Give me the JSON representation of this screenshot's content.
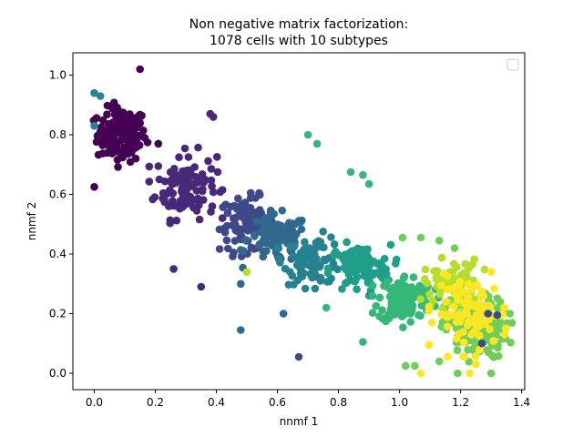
{
  "chart_data": {
    "type": "scatter",
    "title": "Non negative matrix factorization:",
    "subtitle": "1078 cells with 10 subtypes",
    "xlabel": "nnmf 1",
    "ylabel": "nnmf 2",
    "xlim": [
      -0.07,
      1.41
    ],
    "ylim": [
      -0.055,
      1.075
    ],
    "xticks": [
      0.0,
      0.2,
      0.4,
      0.6,
      0.8,
      1.0,
      1.2,
      1.4
    ],
    "xtick_labels": [
      "0.0",
      "0.2",
      "0.4",
      "0.6",
      "0.8",
      "1.0",
      "1.2",
      "1.4"
    ],
    "yticks": [
      0.0,
      0.2,
      0.4,
      0.6,
      0.8,
      1.0
    ],
    "ytick_labels": [
      "0.0",
      "0.2",
      "0.4",
      "0.6",
      "0.8",
      "1.0"
    ],
    "grid": false,
    "legend": {
      "position": "top-right",
      "entries": []
    },
    "colormap": [
      "#440154",
      "#482878",
      "#3e4989",
      "#31688e",
      "#26828e",
      "#1f9e89",
      "#35b779",
      "#6ece58",
      "#b5de2b",
      "#fde725"
    ],
    "clusters": [
      {
        "cluster": 0,
        "center": [
          0.09,
          0.8
        ],
        "spread": [
          0.04,
          0.045
        ],
        "n": 140
      },
      {
        "cluster": 1,
        "center": [
          0.3,
          0.63
        ],
        "spread": [
          0.05,
          0.055
        ],
        "n": 115
      },
      {
        "cluster": 2,
        "center": [
          0.5,
          0.5
        ],
        "spread": [
          0.045,
          0.045
        ],
        "n": 95
      },
      {
        "cluster": 3,
        "center": [
          0.6,
          0.45
        ],
        "spread": [
          0.05,
          0.04
        ],
        "n": 95
      },
      {
        "cluster": 4,
        "center": [
          0.72,
          0.38
        ],
        "spread": [
          0.05,
          0.04
        ],
        "n": 90
      },
      {
        "cluster": 5,
        "center": [
          0.87,
          0.35
        ],
        "spread": [
          0.05,
          0.04
        ],
        "n": 95
      },
      {
        "cluster": 6,
        "center": [
          1.02,
          0.25
        ],
        "spread": [
          0.045,
          0.04
        ],
        "n": 120
      },
      {
        "cluster": 7,
        "center": [
          1.25,
          0.15
        ],
        "spread": [
          0.05,
          0.05
        ],
        "n": 160
      },
      {
        "cluster": 8,
        "center": [
          1.17,
          0.3
        ],
        "spread": [
          0.045,
          0.04
        ],
        "n": 70
      },
      {
        "cluster": 9,
        "center": [
          1.24,
          0.2
        ],
        "spread": [
          0.06,
          0.06
        ],
        "n": 98
      }
    ],
    "outliers": [
      {
        "x": 0.15,
        "y": 1.02,
        "cluster": 0
      },
      {
        "x": 0.0,
        "y": 0.625,
        "cluster": 0
      },
      {
        "x": 0.26,
        "y": 0.35,
        "cluster": 1
      },
      {
        "x": 0.35,
        "y": 0.29,
        "cluster": 1
      },
      {
        "x": 0.38,
        "y": 0.87,
        "cluster": 1
      },
      {
        "x": 0.39,
        "y": 0.86,
        "cluster": 1
      },
      {
        "x": 0.0,
        "y": 0.94,
        "cluster": 4
      },
      {
        "x": 0.02,
        "y": 0.93,
        "cluster": 4
      },
      {
        "x": 0.0,
        "y": 0.83,
        "cluster": 4
      },
      {
        "x": 0.48,
        "y": 0.3,
        "cluster": 3
      },
      {
        "x": 0.48,
        "y": 0.145,
        "cluster": 3
      },
      {
        "x": 0.62,
        "y": 0.2,
        "cluster": 3
      },
      {
        "x": 0.67,
        "y": 0.055,
        "cluster": 2
      },
      {
        "x": 0.7,
        "y": 0.8,
        "cluster": 6
      },
      {
        "x": 0.73,
        "y": 0.77,
        "cluster": 6
      },
      {
        "x": 0.76,
        "y": 0.22,
        "cluster": 6
      },
      {
        "x": 0.84,
        "y": 0.675,
        "cluster": 6
      },
      {
        "x": 0.88,
        "y": 0.665,
        "cluster": 6
      },
      {
        "x": 0.9,
        "y": 0.635,
        "cluster": 6
      },
      {
        "x": 0.88,
        "y": 0.105,
        "cluster": 6
      },
      {
        "x": 1.01,
        "y": 0.455,
        "cluster": 7
      },
      {
        "x": 1.07,
        "y": 0.455,
        "cluster": 7
      },
      {
        "x": 1.13,
        "y": 0.445,
        "cluster": 7
      },
      {
        "x": 1.18,
        "y": 0.42,
        "cluster": 7
      },
      {
        "x": 1.02,
        "y": 0.025,
        "cluster": 7
      },
      {
        "x": 1.05,
        "y": 0.025,
        "cluster": 7
      },
      {
        "x": 1.07,
        "y": 0.0,
        "cluster": 9
      },
      {
        "x": 1.13,
        "y": 0.04,
        "cluster": 7
      },
      {
        "x": 1.19,
        "y": 0.0,
        "cluster": 7
      },
      {
        "x": 1.23,
        "y": 0.0,
        "cluster": 9
      },
      {
        "x": 1.3,
        "y": 0.0,
        "cluster": 7
      },
      {
        "x": 1.25,
        "y": 0.03,
        "cluster": 9
      },
      {
        "x": 1.3,
        "y": 0.34,
        "cluster": 9
      },
      {
        "x": 1.29,
        "y": 0.2,
        "cluster": 2
      },
      {
        "x": 1.32,
        "y": 0.195,
        "cluster": 2
      },
      {
        "x": 1.27,
        "y": 0.1,
        "cluster": 2
      },
      {
        "x": 0.5,
        "y": 0.34,
        "cluster": 8
      },
      {
        "x": 0.21,
        "y": 0.77,
        "cluster": 0
      }
    ]
  }
}
